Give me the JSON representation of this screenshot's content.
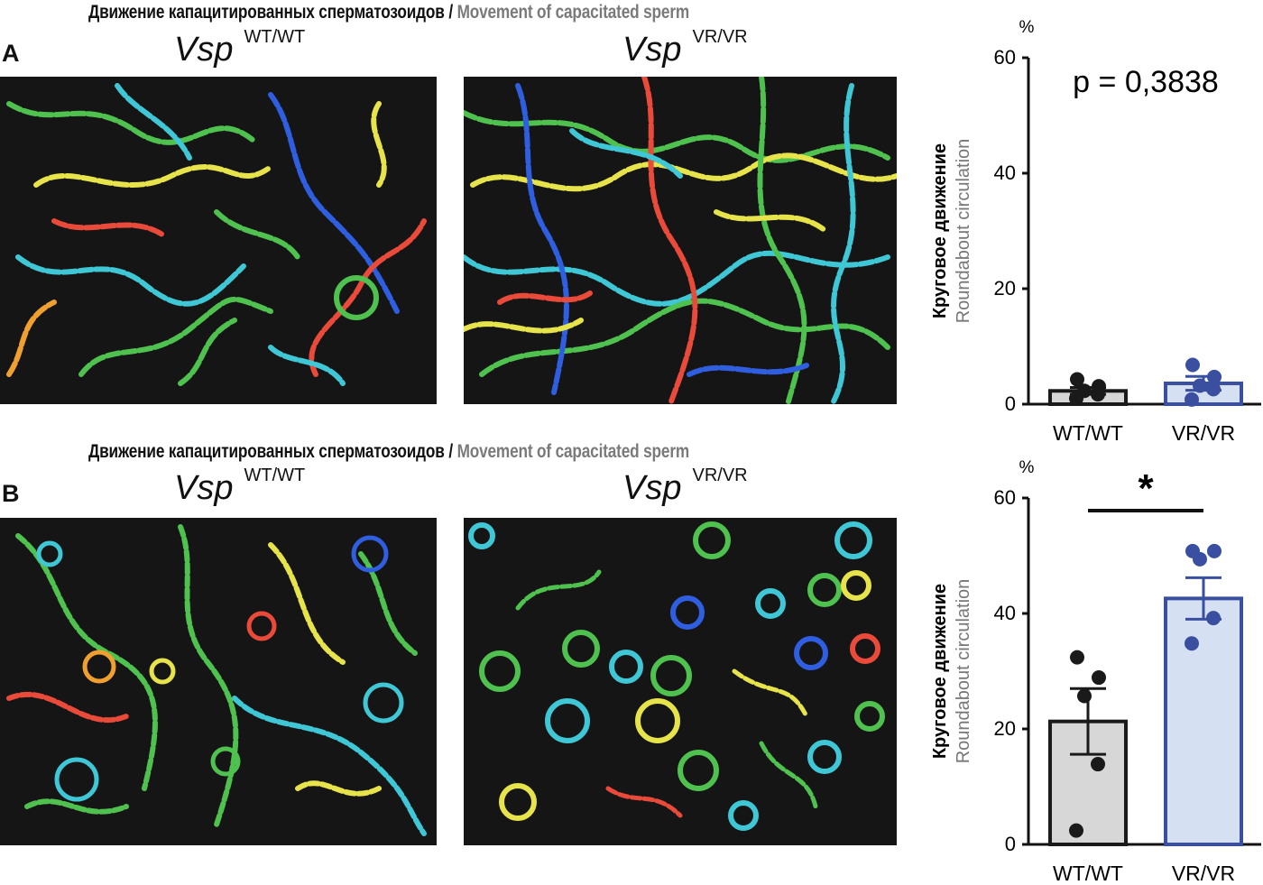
{
  "panels": [
    {
      "letter": "A",
      "title_ru": "Движение капацитированных сперматозоидов",
      "title_sep": " / ",
      "title_en": "Movement of capacitated sperm",
      "geno_left": {
        "name": "Vsp",
        "sup": "WT/WT"
      },
      "geno_right": {
        "name": "Vsp",
        "sup": "VR/VR"
      }
    },
    {
      "letter": "B",
      "title_ru": "Движение капацитированных сперматозоидов",
      "title_sep": " / ",
      "title_en": "Movement of capacitated sperm",
      "geno_left": {
        "name": "Vsp",
        "sup": "WT/WT"
      },
      "geno_right": {
        "name": "Vsp",
        "sup": "VR/VR"
      }
    }
  ],
  "chart_data": [
    {
      "type": "bar",
      "categories": [
        "WT/WT",
        "VR/VR"
      ],
      "values": [
        2.3,
        3.6
      ],
      "sem": [
        0.6,
        1.2
      ],
      "points": [
        [
          1.0,
          1.7,
          2.3,
          3.1,
          4.3
        ],
        [
          0.8,
          2.6,
          3.2,
          4.7,
          6.8
        ]
      ],
      "ylabel_ru": "Круговое движение",
      "ylabel_en": "Roundabout circulation",
      "unit": "%",
      "ylim": [
        0,
        60
      ],
      "yticks": [
        0,
        20,
        40,
        60
      ],
      "annotation": "p = 0,3838",
      "colors": {
        "fill": [
          "#d7d7d7",
          "#d5e0f3"
        ],
        "stroke": [
          "#1a1a1a",
          "#3a4fa0"
        ]
      }
    },
    {
      "type": "bar",
      "categories": [
        "WT/WT",
        "VR/VR"
      ],
      "values": [
        21.3,
        42.6
      ],
      "sem": [
        5.7,
        3.6
      ],
      "points": [
        [
          2.4,
          13.9,
          25.7,
          28.9,
          32.4
        ],
        [
          34.8,
          39.2,
          49.4,
          50.8,
          50.8
        ]
      ],
      "ylabel_ru": "Круговое движение",
      "ylabel_en": "Roundabout circulation",
      "unit": "%",
      "ylim": [
        0,
        60
      ],
      "yticks": [
        0,
        20,
        40,
        60
      ],
      "annotation": "*",
      "colors": {
        "fill": [
          "#d7d7d7",
          "#d5e0f3"
        ],
        "stroke": [
          "#1a1a1a",
          "#3a4fa0"
        ]
      }
    }
  ]
}
